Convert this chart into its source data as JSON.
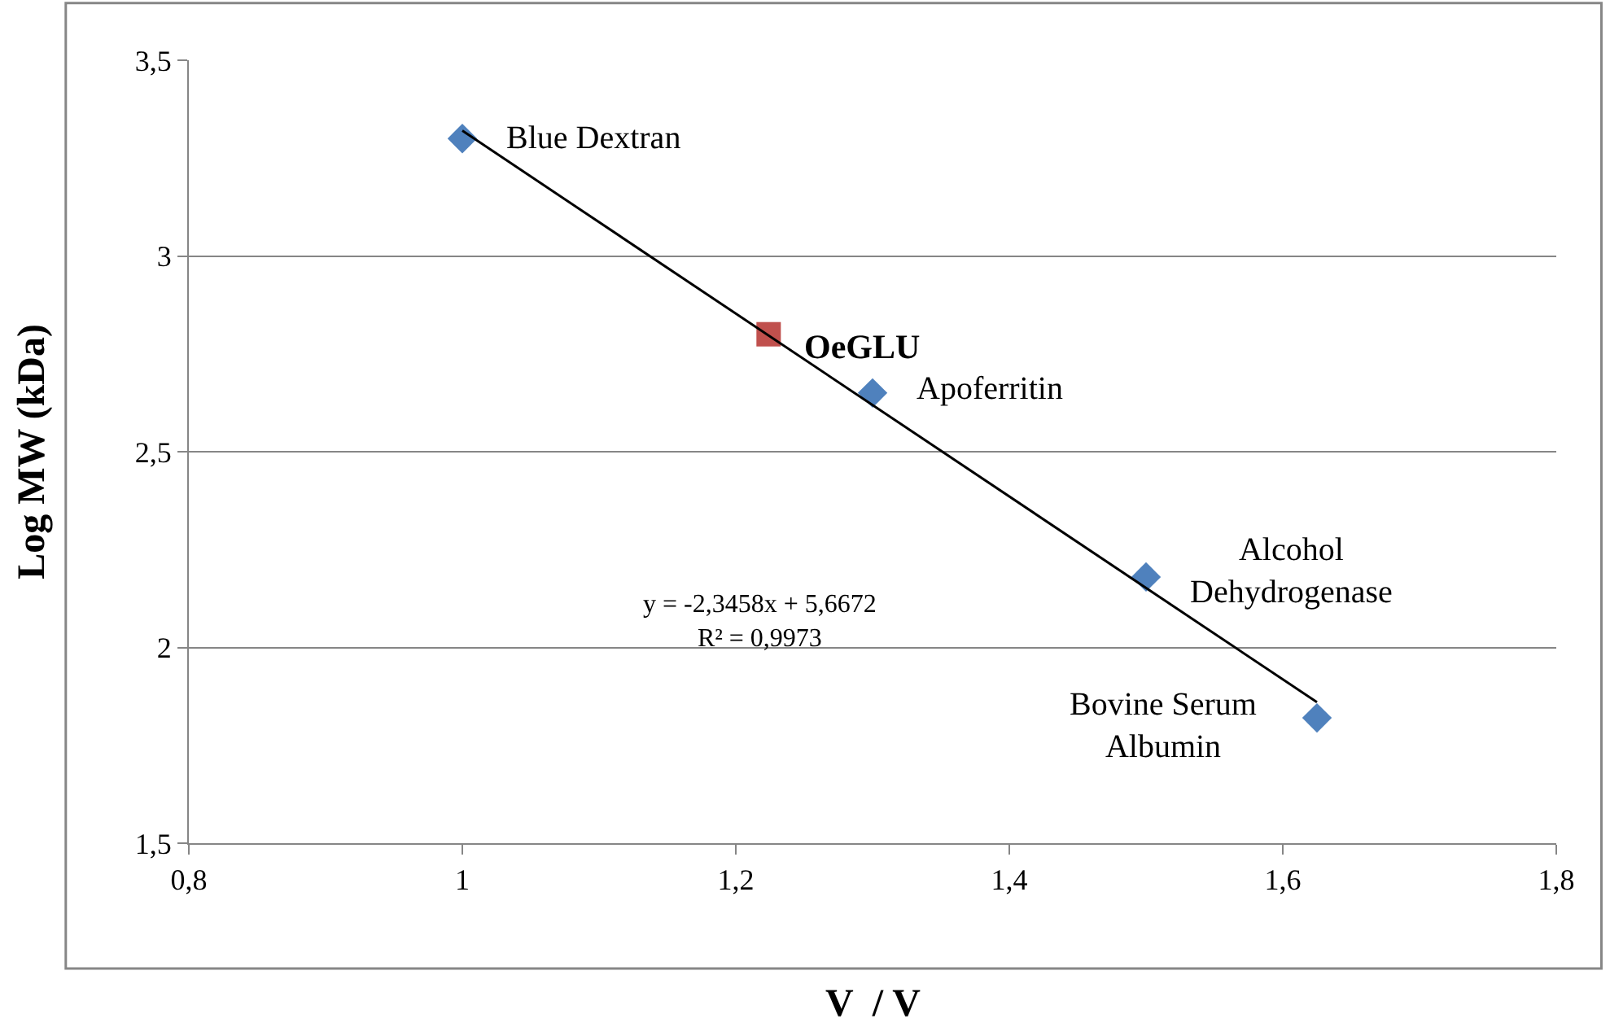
{
  "chart_data": {
    "type": "scatter",
    "xlabel": "V  / V",
    "ylabel": "Log MW (kDa)",
    "series": [
      {
        "marker": "diamond",
        "color": "#4f81bd",
        "x": [
          1.0,
          1.3,
          1.5,
          1.625
        ],
        "values": [
          3.3,
          2.65,
          2.18,
          1.82
        ]
      },
      {
        "marker": "square",
        "color": "#c0504d",
        "x": [
          1.224
        ],
        "values": [
          2.8
        ]
      },
      {
        "type": "line",
        "marker": "none",
        "color": "#000000",
        "x": [
          1.0,
          1.625
        ],
        "values": [
          3.32,
          1.86
        ]
      }
    ],
    "xlim": [
      0.8,
      1.8
    ],
    "ylim": [
      1.5,
      3.5
    ],
    "xticks": [
      {
        "value": 0.8,
        "label": "0,8"
      },
      1,
      {
        "value": 1.2,
        "label": "1,2"
      },
      {
        "value": 1.4,
        "label": "1,4"
      },
      {
        "value": 1.6,
        "label": "1,6"
      },
      {
        "value": 1.8,
        "label": "1,8"
      }
    ],
    "yticks": [
      {
        "value": 1.5,
        "label": "1,5"
      },
      2,
      {
        "value": 2.5,
        "label": "2,5"
      },
      3,
      {
        "value": 3.5,
        "label": "3,5"
      }
    ],
    "grid": "y",
    "annotations": [
      {
        "text": "Blue Dextran",
        "x": 1.0,
        "y": 3.3
      },
      {
        "text": "OeGLU",
        "x": 1.224,
        "y": 2.8
      },
      {
        "text": "Apoferritin",
        "x": 1.3,
        "y": 2.65
      },
      {
        "text": "Alcohol\nDehydrogenase",
        "x": 1.5,
        "y": 2.18
      },
      {
        "text": "Bovine Serum\nAlbumin",
        "x": 1.625,
        "y": 1.82
      },
      "y = -2,3458x + 5,6672\nR² = 0,9973"
    ]
  }
}
